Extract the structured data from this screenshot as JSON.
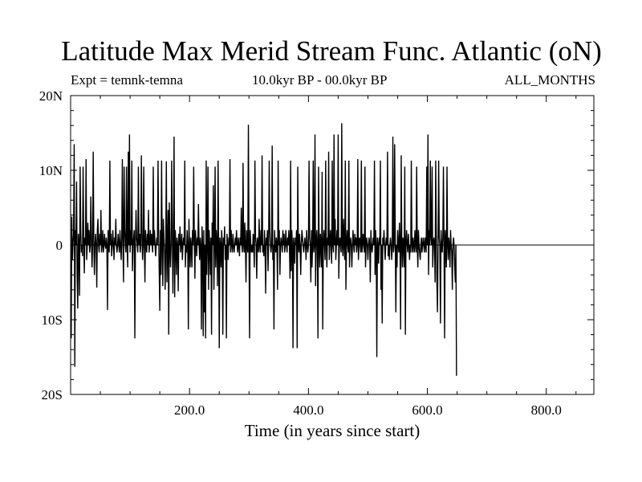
{
  "title": "Latitude Max Merid Stream Func. Atlantic (oN)",
  "subtitle_left": "Expt = temnk-temna",
  "subtitle_center": "10.0kyr BP - 00.0kyr BP",
  "subtitle_right": "ALL_MONTHS",
  "chart_data": {
    "type": "line",
    "title": "Latitude Max Merid Stream Func. Atlantic (oN)",
    "xlabel": "Time (in years since start)",
    "ylabel": "",
    "xlim": [
      0,
      880
    ],
    "ylim": [
      -20,
      20
    ],
    "grid": false,
    "legend": "none",
    "line_color": "#000000",
    "x_ticks": [
      {
        "value": 200,
        "label": "200.0"
      },
      {
        "value": 400,
        "label": "400.0"
      },
      {
        "value": 600,
        "label": "600.0"
      },
      {
        "value": 800,
        "label": "800.0"
      }
    ],
    "y_ticks": [
      {
        "value": 20,
        "label": "20N"
      },
      {
        "value": 10,
        "label": "10N"
      },
      {
        "value": 0,
        "label": "0"
      },
      {
        "value": -10,
        "label": "10S"
      },
      {
        "value": -20,
        "label": "20S"
      }
    ],
    "series": [
      {
        "x_start": 1,
        "x_step": 1,
        "values": [
          -12.5,
          3.8,
          -2,
          0,
          1.5,
          13.5,
          -16.3,
          2,
          0,
          8.5,
          -4,
          -8.5,
          1.5,
          0,
          -6.8,
          10.5,
          2,
          -1,
          0,
          -1.5,
          10.5,
          1,
          -3.8,
          1,
          0,
          11.5,
          -2,
          0,
          3,
          0,
          2,
          -1,
          0,
          6.5,
          1,
          -3,
          0,
          12.5,
          1,
          -4,
          0,
          1.5,
          0,
          -5.7,
          2,
          3.5,
          0,
          -1,
          1.5,
          0,
          4.7,
          -1,
          0,
          2,
          -1,
          0,
          1.5,
          0,
          -0.5,
          1,
          0,
          -8.7,
          2,
          0,
          -1,
          11.3,
          0,
          1.5,
          -1.5,
          0,
          2,
          0,
          -2,
          1,
          0,
          3.5,
          0,
          -1,
          0,
          1.5,
          0,
          -1,
          2,
          0,
          -2,
          1,
          11.5,
          0,
          -5,
          10.5,
          2,
          0,
          -1,
          10.5,
          0,
          -3,
          12.5,
          0,
          14.8,
          -1,
          2,
          0,
          11.3,
          -3.5,
          0,
          1,
          2,
          -12.5,
          0,
          4.7,
          1,
          0,
          -1,
          10.5,
          0,
          1.5,
          -1,
          0,
          12,
          1.5,
          -2,
          0,
          10.5,
          0,
          -5,
          2,
          0,
          -1,
          1.5,
          0,
          4.7,
          -1,
          0,
          2,
          0,
          1.5,
          0,
          -1,
          10.5,
          0,
          2,
          0,
          -1.5,
          0,
          1,
          0,
          11.3,
          2,
          -3.5,
          -8.8,
          2,
          -4,
          11.3,
          0,
          -5.5,
          3.5,
          1,
          -1,
          -6,
          0,
          11.2,
          -5,
          0,
          4.7,
          -12,
          5.7,
          0,
          -3,
          0,
          11.3,
          2,
          -6.5,
          0,
          14.5,
          -7,
          2,
          0,
          -4,
          1,
          0,
          -6.2,
          1.5,
          0,
          2.5,
          -1,
          0,
          1.5,
          -2,
          0,
          1,
          0,
          11.3,
          -3,
          0,
          -1,
          2,
          0,
          -11.3,
          3.5,
          0,
          -3,
          1,
          0,
          -3,
          2,
          0,
          10.5,
          1,
          -4.5,
          2,
          0,
          -1.5,
          1,
          0,
          5.5,
          0,
          -2,
          1,
          0,
          -11.3,
          2.5,
          0,
          -12.2,
          2,
          -9,
          0,
          -12.5,
          11.3,
          -4,
          0,
          10.5,
          -6,
          2,
          0,
          -4,
          1,
          -12,
          3,
          0,
          8,
          -6,
          0,
          10.5,
          -3,
          2,
          0,
          -5.5,
          11.3,
          0,
          -13.8,
          1,
          0,
          -3,
          2,
          0,
          -12,
          1,
          0,
          2.5,
          -2,
          0,
          -12.5,
          1.5,
          0,
          -2,
          1,
          0,
          11.5,
          -1,
          2,
          0,
          -1,
          1.5,
          0,
          -1,
          0,
          1,
          0,
          2,
          0,
          -1,
          1,
          0,
          -1.5,
          1,
          0,
          5,
          0,
          -1,
          11,
          0,
          -1,
          3,
          0,
          -5,
          2,
          0,
          -1,
          16.1,
          0,
          -12.5,
          2,
          0,
          -1,
          0,
          -1,
          1.5,
          0,
          -3,
          11.3,
          1,
          0,
          -4.5,
          1,
          0,
          -1,
          3.5,
          0,
          -1,
          2,
          0,
          12,
          -1,
          0,
          -1.5,
          2,
          0,
          -6.5,
          1,
          0,
          2,
          -3.5,
          0,
          11.3,
          2,
          0,
          -1,
          0,
          13.3,
          -2,
          0,
          -11.3,
          2,
          0,
          -1,
          1,
          0,
          -6,
          11.3,
          0,
          2,
          -4,
          0,
          1,
          0,
          -1,
          2,
          0,
          1.5,
          -1,
          0,
          2,
          0,
          -1,
          1,
          0,
          2,
          0,
          -4.5,
          11.3,
          -3.5,
          2,
          0,
          -13.8,
          1,
          0,
          -2.5,
          1,
          0,
          2,
          -13.8,
          10.5,
          0,
          -1,
          1.5,
          0,
          -4,
          0,
          2,
          1,
          0,
          -1,
          0,
          1,
          0,
          -2,
          2,
          0,
          -1,
          0,
          11.3,
          1,
          0,
          -5,
          2,
          -3,
          0,
          11.3,
          -1,
          0,
          14.8,
          -5.5,
          0,
          2,
          0,
          -12.5,
          10.5,
          0,
          -3,
          1.5,
          0,
          -3,
          9.8,
          -11.3,
          0,
          2,
          0,
          -2,
          11.3,
          0,
          -3,
          1,
          0,
          12.5,
          -2,
          0,
          2,
          0,
          -2.5,
          11.3,
          0,
          -1,
          14.8,
          0,
          3.5,
          -2,
          0,
          2,
          0,
          14.8,
          -4.5,
          0,
          1,
          0,
          -1,
          16.3,
          0,
          -1.5,
          3.5,
          0,
          -2,
          11.3,
          -6,
          0,
          2,
          0,
          -1,
          11.3,
          -3,
          0,
          1,
          0,
          -3,
          0,
          2,
          0,
          -1,
          1.5,
          0,
          1,
          -1,
          0,
          11.5,
          -2,
          0,
          1,
          0,
          -1,
          11.3,
          -1,
          0,
          1.5,
          0,
          -1,
          10.5,
          -3,
          0,
          1,
          0,
          -2,
          0,
          1,
          0,
          -5,
          2,
          0,
          -1,
          0,
          1,
          0,
          11.3,
          -4,
          2,
          0,
          -15,
          1,
          0,
          -2.5,
          1,
          0,
          11.3,
          -6,
          0,
          -10.5,
          1,
          0,
          2,
          0,
          -2,
          0,
          1,
          0,
          12.5,
          -1.5,
          0,
          -2,
          0,
          1,
          0,
          -2,
          0,
          14.5,
          -1,
          0,
          13.5,
          1,
          -9,
          0,
          -3,
          2,
          0,
          -1,
          3,
          0,
          -11.3,
          12,
          0,
          -3,
          1,
          0,
          -3,
          10.5,
          -12,
          0,
          2,
          0,
          -1,
          1.5,
          0,
          -2,
          0,
          -1,
          11.3,
          0,
          -1,
          1,
          0,
          -1,
          2,
          0,
          -1,
          10.5,
          0,
          -3,
          2,
          0,
          -1,
          -2,
          0,
          1,
          -1,
          0,
          1,
          0,
          -1,
          1,
          0,
          -1,
          10.5,
          0,
          14.8,
          -4,
          2,
          0,
          11.3,
          1,
          0,
          10.5,
          -3,
          0,
          1,
          0,
          -5,
          11.3,
          2,
          -5,
          -9,
          0,
          11.3,
          1,
          0,
          -10.5,
          2,
          0,
          -1,
          1,
          10.5,
          0,
          -12.5,
          2,
          0,
          -3,
          10.5,
          0,
          -2,
          1,
          0,
          -3,
          2,
          0,
          -1,
          -6,
          0,
          1,
          0,
          -3,
          -5,
          0,
          -17.5
        ]
      }
    ]
  }
}
